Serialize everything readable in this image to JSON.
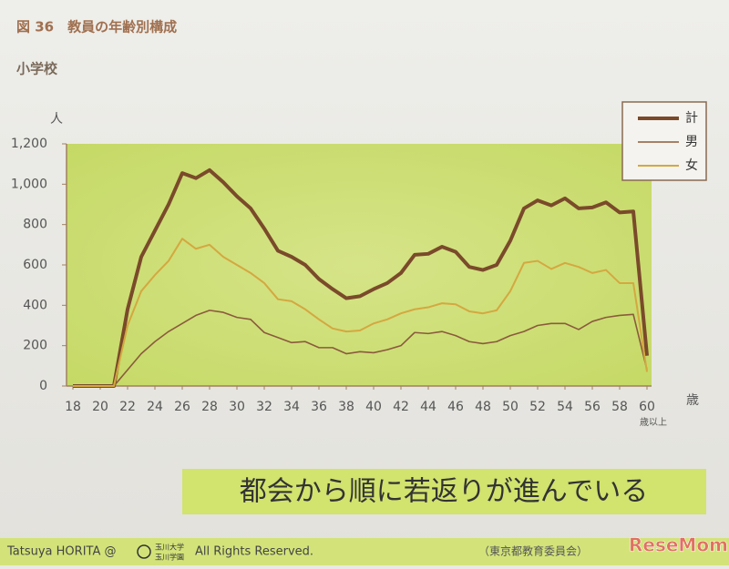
{
  "chart_data": {
    "type": "line",
    "title": "図 36　教員の年齢別構成",
    "subtitle": "小学校",
    "y_label": "人",
    "x_label": "歳",
    "x_note": "歳以上",
    "x": [
      18,
      19,
      20,
      21,
      22,
      23,
      24,
      25,
      26,
      27,
      28,
      29,
      30,
      31,
      32,
      33,
      34,
      35,
      36,
      37,
      38,
      39,
      40,
      41,
      42,
      43,
      44,
      45,
      46,
      47,
      48,
      49,
      50,
      51,
      52,
      53,
      54,
      55,
      56,
      57,
      58,
      59,
      60
    ],
    "series": [
      {
        "name": "計",
        "color": "#7a4a2a",
        "width": 4,
        "values": [
          0,
          0,
          0,
          0,
          380,
          640,
          770,
          900,
          1055,
          1030,
          1070,
          1010,
          940,
          880,
          780,
          670,
          640,
          600,
          530,
          480,
          435,
          445,
          480,
          510,
          560,
          650,
          655,
          690,
          665,
          590,
          575,
          600,
          720,
          880,
          920,
          895,
          930,
          880,
          885,
          910,
          860,
          865,
          150
        ]
      },
      {
        "name": "男",
        "color": "#8b5a3c",
        "width": 1.6,
        "values": [
          0,
          0,
          0,
          0,
          80,
          160,
          220,
          270,
          310,
          350,
          375,
          365,
          340,
          330,
          265,
          240,
          215,
          220,
          190,
          190,
          160,
          170,
          165,
          180,
          200,
          265,
          260,
          270,
          250,
          220,
          210,
          220,
          250,
          270,
          300,
          310,
          310,
          280,
          320,
          340,
          350,
          355,
          80
        ]
      },
      {
        "name": "女",
        "color": "#d4a840",
        "width": 2,
        "values": [
          0,
          0,
          0,
          0,
          300,
          470,
          550,
          620,
          730,
          680,
          700,
          640,
          600,
          560,
          510,
          430,
          420,
          380,
          330,
          285,
          270,
          275,
          310,
          330,
          360,
          380,
          390,
          410,
          405,
          370,
          360,
          375,
          470,
          610,
          620,
          580,
          610,
          590,
          560,
          575,
          510,
          510,
          70
        ]
      }
    ],
    "xlim": [
      18,
      60
    ],
    "xticks": [
      18,
      20,
      22,
      24,
      26,
      28,
      30,
      32,
      34,
      36,
      38,
      40,
      42,
      44,
      46,
      48,
      50,
      52,
      54,
      56,
      58,
      60
    ],
    "ylim": [
      0,
      1200
    ],
    "yticks": [
      0,
      200,
      400,
      600,
      800,
      {
        "value": 1000,
        "label": "1,000"
      },
      {
        "value": 1200,
        "label": "1,200"
      }
    ],
    "grid": false,
    "legend": "top-right"
  },
  "slide": {
    "banner": "都会から順に若返りが進んでいる",
    "footer_author": "Tatsuya HORITA @",
    "footer_logo_1": "玉川大学",
    "footer_logo_2": "玉川学園",
    "footer_rights": "All Rights Reserved.",
    "footer_source": "（東京都教育委員会）",
    "watermark": "ReseMom"
  }
}
